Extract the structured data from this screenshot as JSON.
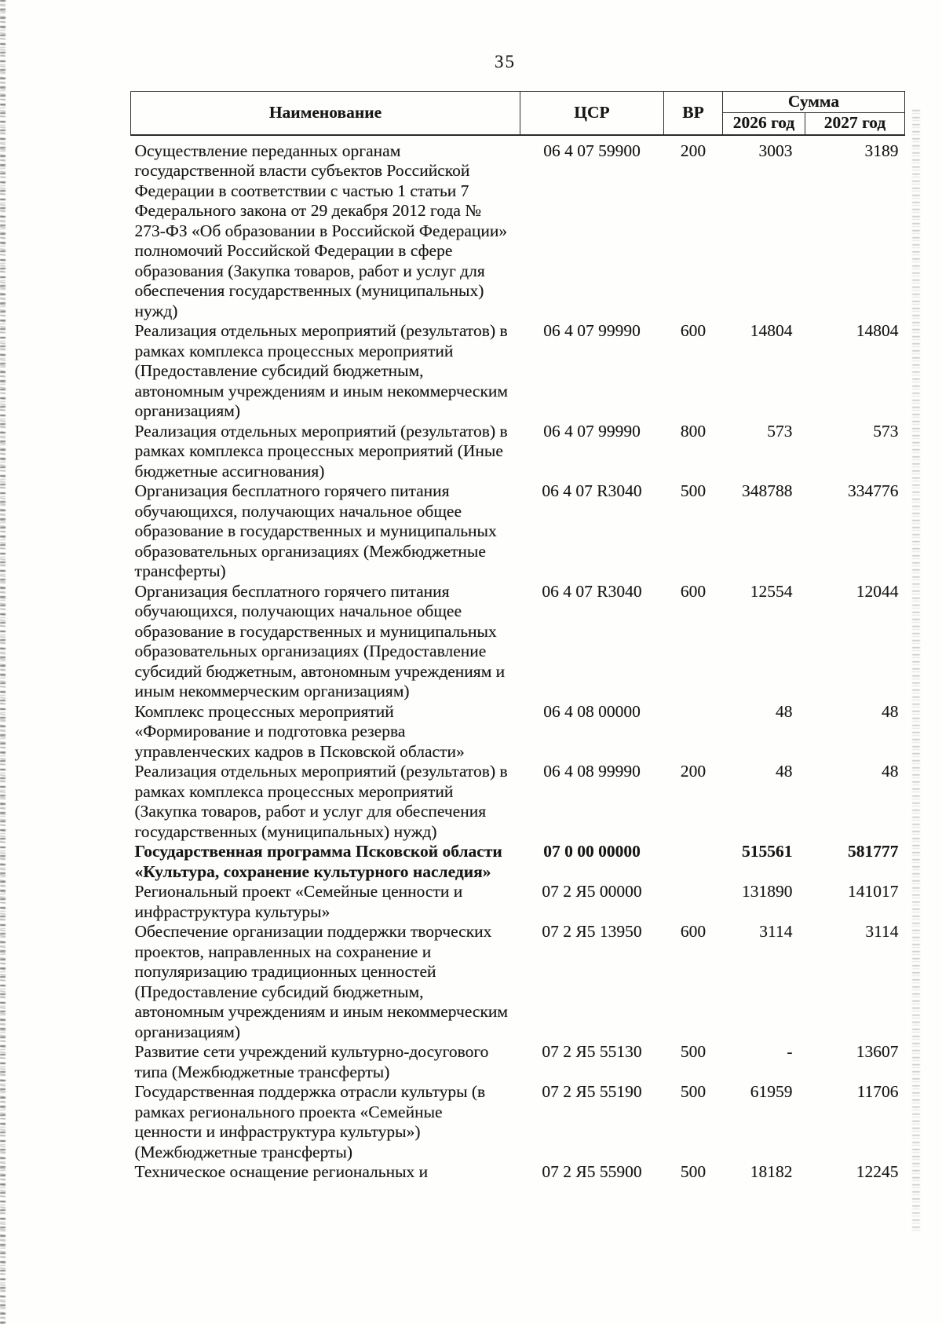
{
  "page": {
    "number": "35"
  },
  "table": {
    "headers": {
      "name": "Наименование",
      "csr": "ЦСР",
      "vr": "ВР",
      "sum": "Сумма",
      "y2026": "2026 год",
      "y2027": "2027 год"
    },
    "rows": [
      {
        "name": "Осуществление переданных органам государственной власти субъектов Российской Федерации в соответствии с частью 1 статьи 7 Федерального закона от 29 декабря 2012 года № 273-ФЗ «Об образовании в Российской Федерации» полномочий Российской Федерации в сфере образования (Закупка товаров, работ и услуг для обеспечения государственных (муниципальных) нужд)",
        "csr": "06 4 07 59900",
        "vr": "200",
        "v2026": "3003",
        "v2027": "3189",
        "bold": false
      },
      {
        "name": "Реализация отдельных мероприятий (результатов) в рамках комплекса процессных мероприятий (Предоставление субсидий бюджетным, автономным учреждениям и иным некоммерческим организациям)",
        "csr": "06 4 07 99990",
        "vr": "600",
        "v2026": "14804",
        "v2027": "14804",
        "bold": false
      },
      {
        "name": "Реализация отдельных мероприятий (результатов) в рамках комплекса процессных мероприятий (Иные бюджетные ассигнования)",
        "csr": "06 4 07 99990",
        "vr": "800",
        "v2026": "573",
        "v2027": "573",
        "bold": false
      },
      {
        "name": "Организация бесплатного горячего питания обучающихся, получающих начальное общее образование в государственных и муниципальных образовательных организациях (Межбюджетные трансферты)",
        "csr": "06 4 07 R3040",
        "vr": "500",
        "v2026": "348788",
        "v2027": "334776",
        "bold": false
      },
      {
        "name": "Организация бесплатного горячего питания обучающихся, получающих начальное общее образование в государственных и муниципальных образовательных организациях (Предоставление субсидий бюджетным, автономным учреждениям и иным некоммерческим организациям)",
        "csr": "06 4 07 R3040",
        "vr": "600",
        "v2026": "12554",
        "v2027": "12044",
        "bold": false
      },
      {
        "name": "Комплекс процессных мероприятий «Формирование и подготовка резерва управленческих кадров в Псковской области»",
        "csr": "06 4 08 00000",
        "vr": "",
        "v2026": "48",
        "v2027": "48",
        "bold": false
      },
      {
        "name": "Реализация отдельных мероприятий (результатов) в рамках комплекса процессных мероприятий (Закупка товаров, работ и услуг для обеспечения государственных (муниципальных) нужд)",
        "csr": "06 4 08 99990",
        "vr": "200",
        "v2026": "48",
        "v2027": "48",
        "bold": false
      },
      {
        "name": "Государственная программа Псковской области «Культура, сохранение культурного наследия»",
        "csr": "07 0 00 00000",
        "vr": "",
        "v2026": "515561",
        "v2027": "581777",
        "bold": true
      },
      {
        "name": "Региональный проект «Семейные ценности и инфраструктура культуры»",
        "csr": "07 2 Я5 00000",
        "vr": "",
        "v2026": "131890",
        "v2027": "141017",
        "bold": false
      },
      {
        "name": "Обеспечение организации поддержки творческих проектов, направленных на сохранение и популяризацию традиционных ценностей (Предоставление субсидий бюджетным, автономным учреждениям и иным некоммерческим организациям)",
        "csr": "07 2 Я5 13950",
        "vr": "600",
        "v2026": "3114",
        "v2027": "3114",
        "bold": false
      },
      {
        "name": "Развитие сети учреждений культурно-досугового типа (Межбюджетные трансферты)",
        "csr": "07 2 Я5 55130",
        "vr": "500",
        "v2026": "-",
        "v2027": "13607",
        "bold": false
      },
      {
        "name": "Государственная поддержка отрасли культуры (в рамках регионального проекта «Семейные ценности и инфраструктура культуры») (Межбюджетные трансферты)",
        "csr": "07 2 Я5 55190",
        "vr": "500",
        "v2026": "61959",
        "v2027": "11706",
        "bold": false
      },
      {
        "name": "Техническое оснащение региональных и",
        "csr": "07 2 Я5 55900",
        "vr": "500",
        "v2026": "18182",
        "v2027": "12245",
        "bold": false
      }
    ]
  }
}
